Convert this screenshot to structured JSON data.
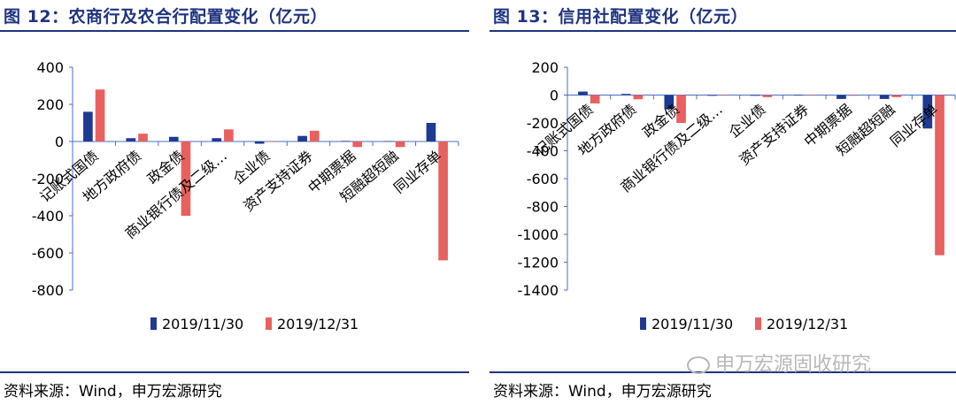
{
  "panels": [
    {
      "title": "图 12：农商行及农合行配置变化（亿元）",
      "source": "资料来源：Wind，申万宏源研究"
    },
    {
      "title": "图 13：信用社配置变化（亿元）",
      "source": "资料来源：Wind，申万宏源研究"
    }
  ],
  "watermark": "申万宏源固收研究",
  "chart_data": [
    {
      "type": "bar",
      "categories": [
        "记账式国债",
        "地方政府债",
        "政金债",
        "商业银行债及二级…",
        "企业债",
        "资产支持证券",
        "中期票据",
        "短融超短融",
        "同业存单"
      ],
      "series": [
        {
          "name": "2019/11/30",
          "color": "#1f3a93",
          "values": [
            160,
            18,
            25,
            18,
            -12,
            30,
            3,
            2,
            100
          ]
        },
        {
          "name": "2019/12/31",
          "color": "#e8615f",
          "values": [
            280,
            42,
            -400,
            65,
            0,
            58,
            -30,
            -30,
            -640
          ]
        }
      ],
      "ylim": [
        -800,
        400
      ],
      "yticks": [
        400,
        200,
        0,
        -200,
        -400,
        -600,
        -800
      ],
      "legend": "bottom"
    },
    {
      "type": "bar",
      "categories": [
        "记账式国债",
        "地方政府债",
        "政金债",
        "商业银行债及二级…",
        "企业债",
        "资产支持证券",
        "中期票据",
        "短融超短融",
        "同业存单"
      ],
      "series": [
        {
          "name": "2019/11/30",
          "color": "#1f3a93",
          "values": [
            25,
            8,
            -100,
            -5,
            -5,
            0,
            -28,
            -28,
            -240
          ]
        },
        {
          "name": "2019/12/31",
          "color": "#e8615f",
          "values": [
            -60,
            -30,
            -200,
            -3,
            -15,
            0,
            -5,
            -15,
            -1150
          ]
        }
      ],
      "ylim": [
        -1400,
        200
      ],
      "yticks": [
        200,
        0,
        -200,
        -400,
        -600,
        -800,
        -1000,
        -1200,
        -1400
      ],
      "legend": "bottom"
    }
  ]
}
